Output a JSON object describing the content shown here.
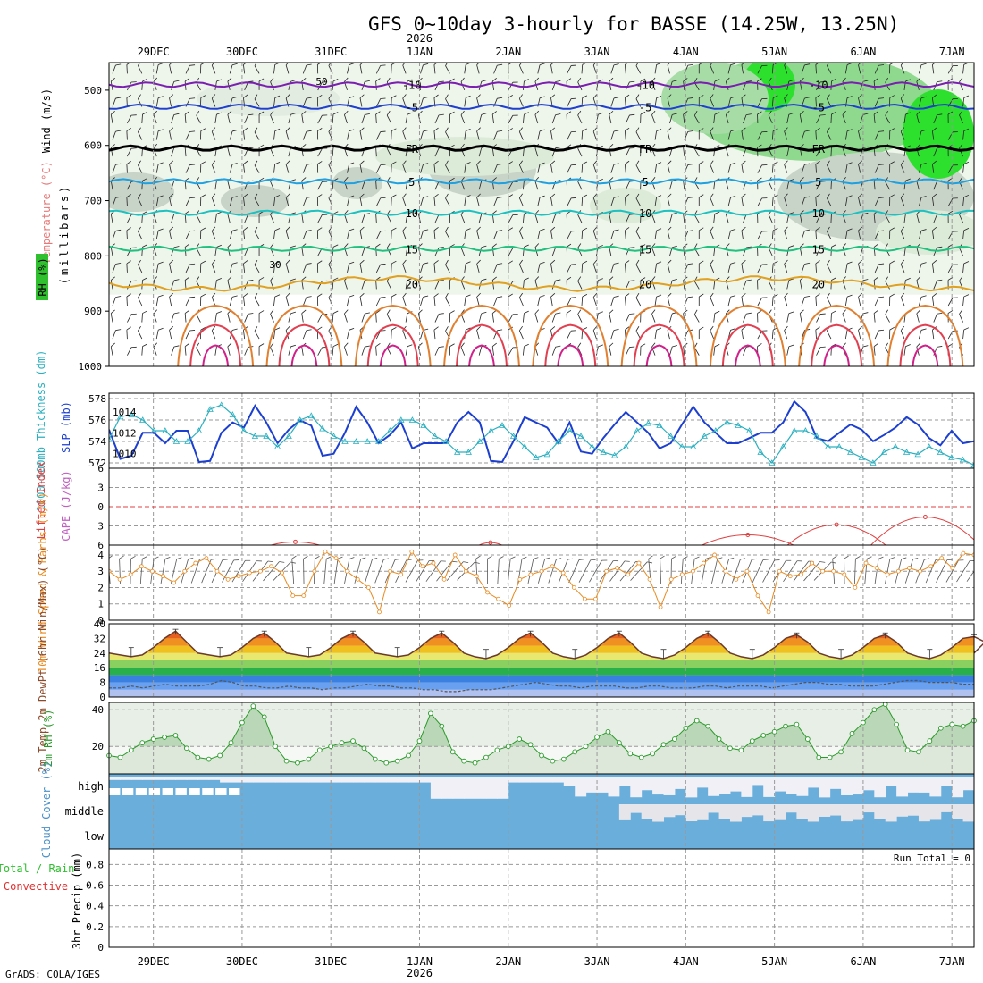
{
  "title": "GFS 0~10day 3-hourly for BASSE (14.25W, 13.25N)",
  "footer": "GrADS: COLA/IGES",
  "colors": {
    "temp": "#e87878",
    "rh": "#2fbf2f",
    "wind": "#000000",
    "thick": "#2ab0c0",
    "slp": "#1c3fd0",
    "li": "#e04040",
    "cape": "#c060c0",
    "wind10": "#e88a20",
    "rh2m": "#2a9a2a",
    "cloud": "#6aaedc",
    "precip_total": "#2fbf2f",
    "precip_conv": "#e03030"
  },
  "chart_data": [
    {
      "id": "upper-air",
      "type": "heatmap",
      "x_axis": {
        "dates": [
          "29DEC",
          "30DEC",
          "31DEC",
          "1JAN",
          "2JAN",
          "3JAN",
          "4JAN",
          "5JAN",
          "6JAN",
          "7JAN"
        ],
        "year_label": "2026",
        "year_under": "1JAN",
        "unit_days_start": -0.5,
        "unit_days_end": 9.25
      },
      "ylabel_parts": [
        "Wind (m/s)",
        "Temperature (°C)",
        "RH (%)"
      ],
      "ylabel2": "(millibars)",
      "ylim": [
        450,
        1000
      ],
      "yticks": [
        500,
        600,
        700,
        800,
        900,
        1000
      ],
      "isotherms": [
        {
          "label": "-10",
          "level": 490,
          "color": "#7a1fb0"
        },
        {
          "label": "-5",
          "level": 530,
          "color": "#1f3fd0"
        },
        {
          "label": "FR",
          "level": 605,
          "color": "#000000"
        },
        {
          "label": "5",
          "level": 665,
          "color": "#1fa0e0"
        },
        {
          "label": "10",
          "level": 722,
          "color": "#1fc0c0"
        },
        {
          "label": "15",
          "level": 787,
          "color": "#20c080"
        },
        {
          "label": "20",
          "level": 850,
          "color": "#e0a020"
        }
      ],
      "rh_labels": [
        "50",
        "30"
      ]
    },
    {
      "id": "thick-slp",
      "type": "line",
      "ylabel": "1000-500mb Thickness (dm)",
      "ylabel_right": "SLP (mb)",
      "thick_ticks": [
        572,
        574,
        576,
        578
      ],
      "slp_ticks": [
        1010,
        1012,
        1014
      ],
      "thick_ylim": [
        571.5,
        578.5
      ],
      "slp_ylim": [
        1008.6,
        1015.8
      ],
      "series": [
        {
          "name": "Thickness",
          "values": [
            574.2,
            576.3,
            576.5,
            576.0,
            575.0,
            575.0,
            574.0,
            574.0,
            575.0,
            577.0,
            577.4,
            576.5,
            575.0,
            574.5,
            574.5,
            573.5,
            574.5,
            576.0,
            576.4,
            575.2,
            574.5,
            574.0,
            574.0,
            574.0,
            574.0,
            575.0,
            576.0,
            576.0,
            575.5,
            574.5,
            574.0,
            573.0,
            573.0,
            574.0,
            575.0,
            575.5,
            574.5,
            573.5,
            572.5,
            572.8,
            574.0,
            575.0,
            574.5,
            573.5,
            573.0,
            572.7,
            573.5,
            575.0,
            575.7,
            575.5,
            574.5,
            573.5,
            573.5,
            574.5,
            575.0,
            575.8,
            575.5,
            575.0,
            573.0,
            572.0,
            573.5,
            575.0,
            575.0,
            574.5,
            573.5,
            573.5,
            573.0,
            572.5,
            572.0,
            573.0,
            573.5,
            573.0,
            572.8,
            573.5,
            573.0,
            572.5,
            572.3,
            571.8
          ]
        },
        {
          "name": "SLP",
          "values": [
            1012.3,
            1009.5,
            1009.8,
            1012.0,
            1012.0,
            1011.0,
            1012.2,
            1012.2,
            1009.2,
            1009.3,
            1012.0,
            1013.0,
            1012.5,
            1014.6,
            1013.0,
            1011.0,
            1012.3,
            1013.2,
            1012.7,
            1009.8,
            1010.0,
            1012.0,
            1014.5,
            1013.0,
            1011.0,
            1011.8,
            1013.0,
            1010.5,
            1011.0,
            1011.0,
            1011.0,
            1013.0,
            1014.0,
            1013.0,
            1009.3,
            1009.2,
            1011.2,
            1013.5,
            1013.0,
            1012.5,
            1011.0,
            1013.0,
            1010.2,
            1010.0,
            1011.5,
            1012.8,
            1014.0,
            1013.0,
            1012.0,
            1010.5,
            1011.0,
            1012.8,
            1014.5,
            1013.0,
            1012.0,
            1011.0,
            1011.0,
            1011.5,
            1012.0,
            1012.0,
            1013.0,
            1015.0,
            1014.0,
            1011.5,
            1011.2,
            1012.0,
            1012.8,
            1012.3,
            1011.2,
            1011.8,
            1012.5,
            1013.5,
            1012.8,
            1011.5,
            1010.8,
            1012.2,
            1011.0,
            1011.2
          ]
        }
      ]
    },
    {
      "id": "li-cape",
      "type": "line",
      "ylabel": "Lifted Index",
      "ylabel_right": "CAPE (J/kg)",
      "yticks": [
        -6,
        -3,
        0,
        3,
        6
      ],
      "ytick_labels": [
        "6",
        "3",
        "0",
        "3",
        "6"
      ],
      "ylim": [
        -6,
        6
      ],
      "series": [
        {
          "name": "Lifted Index",
          "bumps": [
            [
              1.6,
              5.5,
              0.4
            ],
            [
              3.8,
              5.6,
              0.2
            ],
            [
              6.7,
              4.4,
              0.6
            ],
            [
              7.7,
              2.8,
              0.6
            ],
            [
              8.7,
              1.6,
              0.65
            ]
          ]
        }
      ]
    },
    {
      "id": "wind10m",
      "type": "line",
      "ylabel": "10m Wind Speed & Barbs (m/s)",
      "yticks": [
        0,
        1,
        2,
        3,
        4
      ],
      "ylim": [
        0,
        4.6
      ],
      "series": [
        {
          "name": "10m Wind Speed",
          "values": [
            3.0,
            2.5,
            2.8,
            3.3,
            3.0,
            2.7,
            2.3,
            3.0,
            3.5,
            3.8,
            3.0,
            2.5,
            2.7,
            2.9,
            3.0,
            3.3,
            2.9,
            1.5,
            1.5,
            3.0,
            4.2,
            3.8,
            3.0,
            2.5,
            2.0,
            0.5,
            3.0,
            2.8,
            4.2,
            3.3,
            3.5,
            2.5,
            4.0,
            3.0,
            2.7,
            1.7,
            1.3,
            0.9,
            2.5,
            2.8,
            3.0,
            3.3,
            2.9,
            2.0,
            1.3,
            1.3,
            3.0,
            3.2,
            2.8,
            3.5,
            2.5,
            0.8,
            2.5,
            2.8,
            3.0,
            3.5,
            4.0,
            3.0,
            2.5,
            3.0,
            1.5,
            0.5,
            3.0,
            2.7,
            2.8,
            3.5,
            3.0,
            3.0,
            2.8,
            2.0,
            3.5,
            3.2,
            2.8,
            3.0,
            3.2,
            3.0,
            3.3,
            3.8,
            3.2,
            4.1,
            4.0
          ]
        }
      ]
    },
    {
      "id": "temp2m",
      "type": "area",
      "ylabel": "2m Temp 2m DewPt (6hr Min/Max) (°C)",
      "yticks": [
        0,
        8,
        16,
        24,
        32,
        40
      ],
      "ylim": [
        0,
        40
      ],
      "color_bands": [
        [
          0,
          4,
          "#b0c0ef"
        ],
        [
          4,
          8,
          "#6aa0f0"
        ],
        [
          8,
          12,
          "#3a80e0"
        ],
        [
          12,
          16,
          "#2ab04a"
        ],
        [
          16,
          20,
          "#8ad060"
        ],
        [
          20,
          24,
          "#e8e870"
        ],
        [
          24,
          28,
          "#f0c020"
        ],
        [
          28,
          32,
          "#f09020"
        ],
        [
          32,
          36,
          "#e86020"
        ],
        [
          36,
          40,
          "#c03010"
        ]
      ],
      "temp_max": [
        36,
        35,
        35,
        35,
        35,
        35,
        35,
        34,
        34,
        33
      ],
      "temp_min": [
        22,
        22,
        22,
        22,
        21,
        21,
        21,
        21,
        21,
        21
      ],
      "dewpt": [
        5,
        5,
        6,
        5,
        6,
        7,
        6,
        6,
        6,
        7,
        9,
        8,
        6,
        6,
        5,
        5,
        6,
        5,
        5,
        4,
        5,
        5,
        6,
        7,
        6,
        6,
        5,
        5,
        4,
        4,
        3,
        3,
        4,
        4,
        4,
        5,
        6,
        7,
        8,
        7,
        6,
        6,
        5,
        6,
        6,
        6,
        5,
        5,
        6,
        6,
        5,
        5,
        5,
        6,
        6,
        5,
        6,
        6,
        6,
        5,
        6,
        7,
        8,
        8,
        7,
        7,
        6,
        6,
        6,
        7,
        8,
        9,
        9,
        8,
        8,
        8,
        7,
        7
      ]
    },
    {
      "id": "rh2m",
      "type": "area",
      "ylabel": "2m RH (%)",
      "yticks": [
        20,
        40
      ],
      "ylim": [
        5,
        44
      ],
      "series": [
        {
          "name": "2m RH",
          "values": [
            15,
            14,
            18,
            22,
            24,
            25,
            26,
            19,
            14,
            13,
            15,
            22,
            33,
            42,
            36,
            20,
            12,
            11,
            13,
            18,
            20,
            22,
            23,
            19,
            13,
            11,
            12,
            15,
            23,
            38,
            31,
            17,
            12,
            11,
            14,
            18,
            20,
            24,
            21,
            15,
            12,
            13,
            17,
            20,
            25,
            28,
            22,
            16,
            14,
            16,
            21,
            24,
            30,
            34,
            31,
            24,
            19,
            18,
            23,
            26,
            28,
            31,
            32,
            24,
            14,
            14,
            17,
            27,
            33,
            40,
            43,
            32,
            18,
            17,
            23,
            30,
            32,
            31,
            34
          ]
        }
      ]
    },
    {
      "id": "cloud",
      "type": "heatmap",
      "ylabel": "Cloud Cover (%)",
      "levels": [
        "high",
        "middle",
        "low"
      ]
    },
    {
      "id": "precip",
      "type": "bar",
      "ylabel": "3hr Precip (mm)",
      "ylabel_parts": [
        "Total / Rain",
        "Convective"
      ],
      "run_total": "Run Total = 0",
      "yticks": [
        0,
        0.2,
        0.4,
        0.6,
        0.8
      ],
      "ytick_labels": [
        "0",
        "0.2",
        "0.4",
        "0.6",
        "0.8"
      ],
      "ylim": [
        0,
        0.95
      ],
      "values": []
    }
  ]
}
